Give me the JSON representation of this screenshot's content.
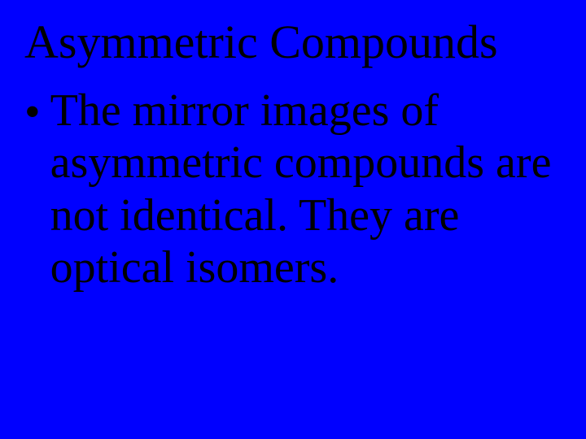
{
  "slide": {
    "title": "Asymmetric Compounds",
    "bullet_symbol": "•",
    "body": "The mirror images of asymmetric compounds are not identical. They are optical isomers.",
    "background_color": "#0000ff",
    "text_color": "#000000",
    "title_fontsize": 58,
    "body_fontsize": 56,
    "font_family": "Times New Roman"
  }
}
